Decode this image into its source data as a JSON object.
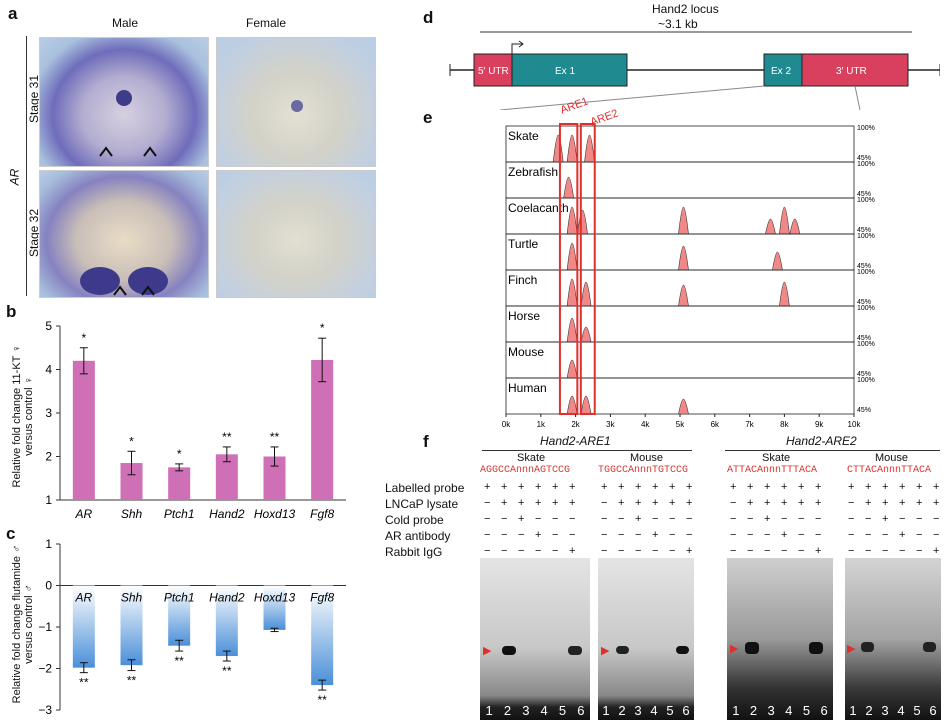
{
  "panels": {
    "a": "a",
    "b": "b",
    "c": "c",
    "d": "d",
    "e": "e",
    "f": "f"
  },
  "panel_a": {
    "col_male": "Male",
    "col_female": "Female",
    "row1": "Stage 31",
    "row2": "Stage 32",
    "gene": "AR"
  },
  "panel_d": {
    "title": "Hand2 locus",
    "subtitle": "~3.1 kb",
    "exons": [
      "5′ UTR",
      "Ex 1",
      "Ex 2",
      "3′ UTR"
    ],
    "colors": {
      "utr": "#d9405e",
      "exon": "#1f8a8f"
    }
  },
  "panel_e": {
    "species": [
      "Skate",
      "Zebrafish",
      "Coelacanth",
      "Turtle",
      "Finch",
      "Horse",
      "Mouse",
      "Human"
    ],
    "are_labels": [
      "ARE1",
      "ARE2"
    ],
    "pct_high": "100%",
    "pct_low": "45%",
    "xticks": [
      "0k",
      "1k",
      "2k",
      "3k",
      "4k",
      "5k",
      "6k",
      "7k",
      "8k",
      "9k",
      "10k"
    ]
  },
  "chart_data": [
    {
      "type": "bar",
      "ylabel": "Relative fold change 11-KT ♀ versus control ♀",
      "categories": [
        "AR",
        "Shh",
        "Ptch1",
        "Hand2",
        "Hoxd13",
        "Fgf8"
      ],
      "values": [
        4.2,
        1.85,
        1.75,
        2.05,
        2.0,
        4.22
      ],
      "errors": [
        0.3,
        0.27,
        0.08,
        0.17,
        0.22,
        0.5
      ],
      "significance": [
        "*",
        "*",
        "*",
        "**",
        "**",
        "*"
      ],
      "ylim": [
        1,
        5
      ],
      "yticks": [
        "1",
        "2",
        "3",
        "4",
        "5"
      ],
      "color": "#cf6fb5"
    },
    {
      "type": "bar",
      "ylabel": "Relative fold change flutamide ♂ versus control ♂",
      "categories": [
        "AR",
        "Shh",
        "Ptch1",
        "Hand2",
        "Hoxd13",
        "Fgf8"
      ],
      "values": [
        -1.98,
        -1.92,
        -1.45,
        -1.7,
        -1.07,
        -2.4
      ],
      "errors": [
        0.12,
        0.13,
        0.13,
        0.12,
        0.04,
        0.12
      ],
      "significance": [
        "**",
        "**",
        "**",
        "**",
        "",
        "**"
      ],
      "ylim": [
        -3,
        1
      ],
      "yticks": [
        "1",
        "0",
        "−1",
        "−2",
        "−3"
      ],
      "color": "#4a8fd8"
    }
  ],
  "panel_f": {
    "group1": "Hand2-ARE1",
    "group2": "Hand2-ARE2",
    "species": [
      "Skate",
      "Mouse",
      "Skate",
      "Mouse"
    ],
    "seqs": [
      "AGGCCAnnnAGTCCG",
      "TGGCCAnnnTGTCCG",
      "ATTACAnnnTTTACA",
      "CTTACAnnnTTACA"
    ],
    "rows": [
      "Labelled probe",
      "LNCaP lysate",
      "Cold probe",
      "AR antibody",
      "Rabbit IgG"
    ],
    "plusminus": [
      [
        "+",
        "+",
        "+",
        "+",
        "+",
        "+"
      ],
      [
        "−",
        "+",
        "+",
        "+",
        "+",
        "+"
      ],
      [
        "−",
        "−",
        "+",
        "−",
        "−",
        "−"
      ],
      [
        "−",
        "−",
        "−",
        "+",
        "−",
        "−"
      ],
      [
        "−",
        "−",
        "−",
        "−",
        "−",
        "+"
      ]
    ],
    "lanes": [
      "1",
      "2",
      "3",
      "4",
      "5",
      "6"
    ]
  }
}
